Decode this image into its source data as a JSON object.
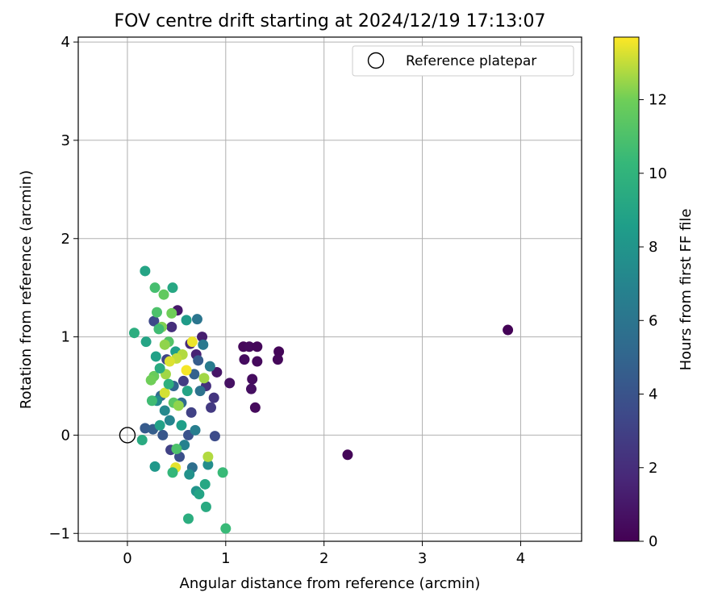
{
  "chart_data": {
    "type": "scatter",
    "title": "FOV centre drift starting at 2024/12/19 17:13:07",
    "xlabel": "Angular distance from reference (arcmin)",
    "ylabel": "Rotation from reference (arcmin)",
    "xlim": [
      -0.5,
      4.62
    ],
    "ylim": [
      -1.08,
      4.05
    ],
    "xticks": [
      0,
      1,
      2,
      3,
      4
    ],
    "yticks": [
      -1,
      0,
      1,
      2,
      3,
      4
    ],
    "grid": true,
    "colormap": "viridis",
    "colorbar": {
      "label": "Hours from first FF file",
      "range": [
        0,
        13.7
      ],
      "ticks": [
        0,
        2,
        4,
        6,
        8,
        10,
        12
      ]
    },
    "legend": {
      "position": "top-right",
      "entries": [
        "Reference platepar"
      ]
    },
    "reference_point": {
      "x": 0,
      "y": 0,
      "label": "Reference platepar"
    },
    "points": [
      {
        "x": 3.87,
        "y": 1.07,
        "h": 0.1
      },
      {
        "x": 2.24,
        "y": -0.2,
        "h": 0.2
      },
      {
        "x": 1.18,
        "y": 0.9,
        "h": 0.3
      },
      {
        "x": 1.24,
        "y": 0.9,
        "h": 0.4
      },
      {
        "x": 1.32,
        "y": 0.9,
        "h": 0.3
      },
      {
        "x": 1.19,
        "y": 0.77,
        "h": 0.5
      },
      {
        "x": 1.32,
        "y": 0.75,
        "h": 0.4
      },
      {
        "x": 1.54,
        "y": 0.85,
        "h": 0.2
      },
      {
        "x": 1.53,
        "y": 0.77,
        "h": 0.3
      },
      {
        "x": 1.27,
        "y": 0.57,
        "h": 0.5
      },
      {
        "x": 1.26,
        "y": 0.47,
        "h": 0.6
      },
      {
        "x": 1.3,
        "y": 0.28,
        "h": 0.4
      },
      {
        "x": 1.04,
        "y": 0.53,
        "h": 0.7
      },
      {
        "x": 0.91,
        "y": 0.64,
        "h": 0.9
      },
      {
        "x": 0.51,
        "y": 1.27,
        "h": 1.0
      },
      {
        "x": 0.76,
        "y": 1.0,
        "h": 1.3
      },
      {
        "x": 0.7,
        "y": 0.82,
        "h": 1.5
      },
      {
        "x": 0.64,
        "y": 0.93,
        "h": 1.8
      },
      {
        "x": 0.45,
        "y": 1.1,
        "h": 2.0
      },
      {
        "x": 0.88,
        "y": 0.38,
        "h": 2.4
      },
      {
        "x": 0.85,
        "y": 0.28,
        "h": 2.6
      },
      {
        "x": 0.8,
        "y": 0.5,
        "h": 2.2
      },
      {
        "x": 0.57,
        "y": 0.55,
        "h": 2.8
      },
      {
        "x": 0.65,
        "y": 0.23,
        "h": 3.0
      },
      {
        "x": 0.4,
        "y": 0.77,
        "h": 3.2
      },
      {
        "x": 0.27,
        "y": 1.16,
        "h": 3.4
      },
      {
        "x": 0.89,
        "y": -0.01,
        "h": 3.6
      },
      {
        "x": 0.44,
        "y": -0.15,
        "h": 3.0
      },
      {
        "x": 0.53,
        "y": -0.22,
        "h": 3.8
      },
      {
        "x": 0.62,
        "y": 0.0,
        "h": 4.0
      },
      {
        "x": 0.36,
        "y": 0.0,
        "h": 4.2
      },
      {
        "x": 0.18,
        "y": 0.07,
        "h": 4.4
      },
      {
        "x": 0.26,
        "y": 0.06,
        "h": 4.6
      },
      {
        "x": 0.72,
        "y": 0.76,
        "h": 4.5
      },
      {
        "x": 0.68,
        "y": 0.62,
        "h": 4.8
      },
      {
        "x": 0.47,
        "y": 0.5,
        "h": 5.0
      },
      {
        "x": 0.34,
        "y": 0.4,
        "h": 5.2
      },
      {
        "x": 0.55,
        "y": 0.33,
        "h": 5.4
      },
      {
        "x": 0.66,
        "y": -0.33,
        "h": 5.6
      },
      {
        "x": 0.74,
        "y": 0.45,
        "h": 5.8
      },
      {
        "x": 0.71,
        "y": 1.18,
        "h": 6.0
      },
      {
        "x": 0.77,
        "y": 0.92,
        "h": 6.2
      },
      {
        "x": 0.84,
        "y": 0.7,
        "h": 6.4
      },
      {
        "x": 0.69,
        "y": 0.05,
        "h": 6.6
      },
      {
        "x": 0.58,
        "y": -0.1,
        "h": 6.8
      },
      {
        "x": 0.43,
        "y": 0.15,
        "h": 7.0
      },
      {
        "x": 0.38,
        "y": 0.25,
        "h": 7.2
      },
      {
        "x": 0.3,
        "y": 0.35,
        "h": 7.4
      },
      {
        "x": 0.82,
        "y": -0.3,
        "h": 7.6
      },
      {
        "x": 0.63,
        "y": -0.4,
        "h": 7.8
      },
      {
        "x": 0.7,
        "y": -0.57,
        "h": 8.0
      },
      {
        "x": 0.28,
        "y": -0.32,
        "h": 8.2
      },
      {
        "x": 0.6,
        "y": 1.17,
        "h": 8.4
      },
      {
        "x": 0.49,
        "y": 0.85,
        "h": 8.6
      },
      {
        "x": 0.33,
        "y": 0.1,
        "h": 8.8
      },
      {
        "x": 0.73,
        "y": -0.6,
        "h": 9.0
      },
      {
        "x": 0.79,
        "y": -0.5,
        "h": 9.2
      },
      {
        "x": 0.8,
        "y": -0.73,
        "h": 9.4
      },
      {
        "x": 0.62,
        "y": -0.85,
        "h": 9.6
      },
      {
        "x": 0.18,
        "y": 1.67,
        "h": 9.0
      },
      {
        "x": 0.46,
        "y": 1.5,
        "h": 9.2
      },
      {
        "x": 0.07,
        "y": 1.04,
        "h": 9.6
      },
      {
        "x": 0.19,
        "y": 0.95,
        "h": 9.0
      },
      {
        "x": 0.15,
        "y": -0.05,
        "h": 9.4
      },
      {
        "x": 0.97,
        "y": -0.38,
        "h": 10.4
      },
      {
        "x": 1.0,
        "y": -0.95,
        "h": 10.4
      },
      {
        "x": 0.28,
        "y": 1.5,
        "h": 10.8
      },
      {
        "x": 0.3,
        "y": 1.25,
        "h": 11.0
      },
      {
        "x": 0.37,
        "y": 1.43,
        "h": 11.6
      },
      {
        "x": 0.45,
        "y": 1.24,
        "h": 12.0
      },
      {
        "x": 0.35,
        "y": 1.1,
        "h": 12.2
      },
      {
        "x": 0.32,
        "y": 1.08,
        "h": 10.6
      },
      {
        "x": 0.42,
        "y": 0.95,
        "h": 11.2
      },
      {
        "x": 0.38,
        "y": 0.92,
        "h": 12.4
      },
      {
        "x": 0.56,
        "y": 0.82,
        "h": 12.8
      },
      {
        "x": 0.5,
        "y": 0.78,
        "h": 13.0
      },
      {
        "x": 0.43,
        "y": 0.75,
        "h": 13.3
      },
      {
        "x": 0.66,
        "y": 0.95,
        "h": 13.5
      },
      {
        "x": 0.6,
        "y": 0.66,
        "h": 13.6
      },
      {
        "x": 0.39,
        "y": 0.62,
        "h": 12.6
      },
      {
        "x": 0.27,
        "y": 0.6,
        "h": 11.8
      },
      {
        "x": 0.24,
        "y": 0.56,
        "h": 12.0
      },
      {
        "x": 0.38,
        "y": 0.43,
        "h": 13.2
      },
      {
        "x": 0.25,
        "y": 0.35,
        "h": 10.6
      },
      {
        "x": 0.47,
        "y": 0.33,
        "h": 11.4
      },
      {
        "x": 0.52,
        "y": 0.3,
        "h": 12.4
      },
      {
        "x": 0.78,
        "y": 0.58,
        "h": 12.6
      },
      {
        "x": 0.82,
        "y": -0.22,
        "h": 12.8
      },
      {
        "x": 0.49,
        "y": -0.33,
        "h": 13.4
      },
      {
        "x": 0.46,
        "y": -0.38,
        "h": 10.2
      },
      {
        "x": 0.5,
        "y": -0.14,
        "h": 11.0
      },
      {
        "x": 0.42,
        "y": 0.52,
        "h": 9.8
      },
      {
        "x": 0.61,
        "y": 0.45,
        "h": 9.0
      },
      {
        "x": 0.55,
        "y": 0.1,
        "h": 8.6
      },
      {
        "x": 0.33,
        "y": 0.68,
        "h": 9.4
      },
      {
        "x": 0.29,
        "y": 0.8,
        "h": 8.8
      }
    ]
  }
}
